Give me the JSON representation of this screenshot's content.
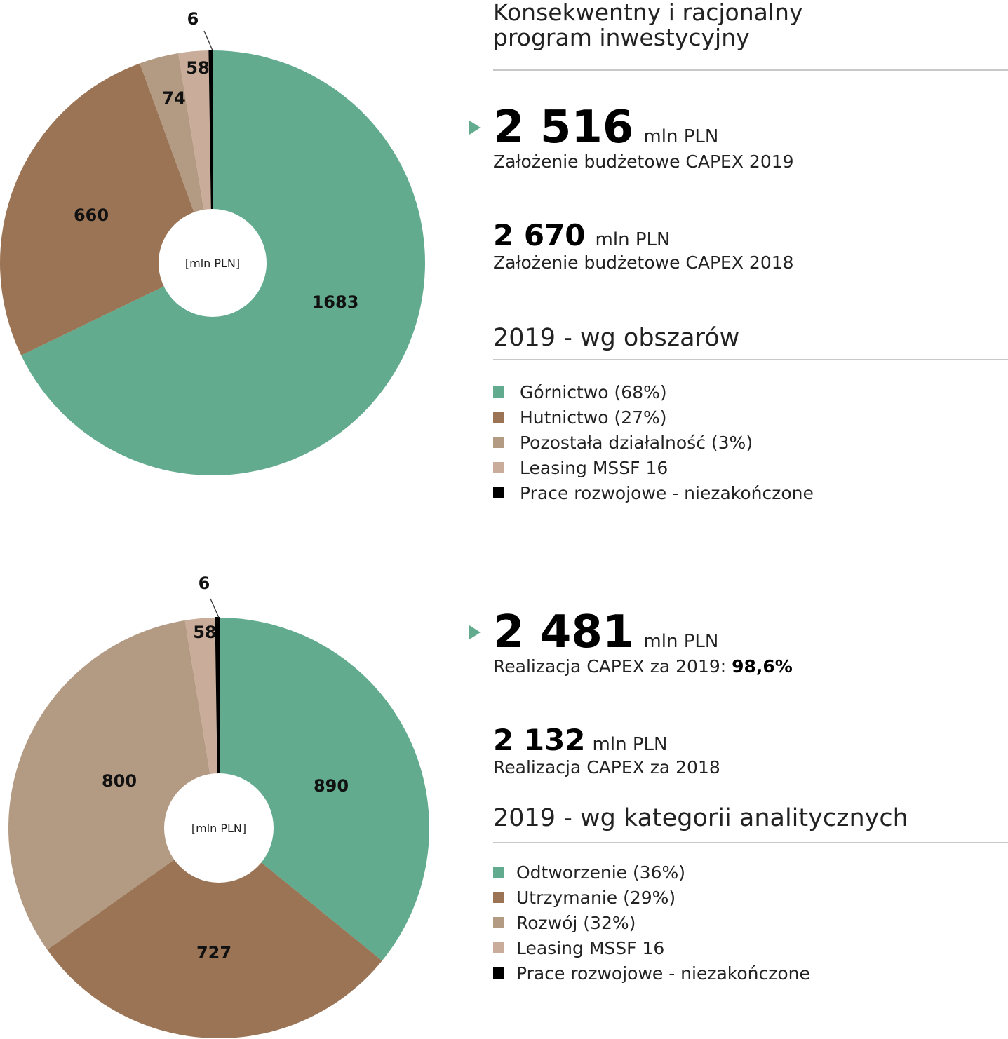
{
  "colors": {
    "gornictwo": "#62ab8f",
    "hutnictwo": "#9a7455",
    "pozostala": "#b39a83",
    "leasing": "#c9ad9a",
    "prace": "#000000",
    "accent": "#62ab8f"
  },
  "top": {
    "headline_line1": "Konsekwentny i racjonalny",
    "headline_line2": "program inwestycyjny",
    "kpi_main": {
      "value": "2 516",
      "unit": "mln PLN",
      "caption": "Założenie budżetowe CAPEX 2019"
    },
    "kpi_secondary": {
      "value": "2 670",
      "unit": "mln PLN",
      "caption": "Założenie budżetowe CAPEX 2018"
    },
    "section_title": "2019 - wg obszarów",
    "legend": [
      {
        "label": "Górnictwo (68%)",
        "color": "#62ab8f"
      },
      {
        "label": "Hutnictwo (27%)",
        "color": "#9a7455"
      },
      {
        "label": "Pozostała działalność (3%)",
        "color": "#b39a83"
      },
      {
        "label": "Leasing MSSF 16",
        "color": "#c9ad9a"
      },
      {
        "label": "Prace rozwojowe - niezakończone",
        "color": "#000000"
      }
    ]
  },
  "bottom": {
    "kpi_main": {
      "value": "2 481",
      "unit": "mln PLN",
      "caption_prefix": "Realizacja CAPEX za 2019: ",
      "caption_bold": "98,6%"
    },
    "kpi_secondary": {
      "value": "2 132",
      "unit": "mln PLN",
      "caption": "Realizacja CAPEX za 2018"
    },
    "section_title": "2019 - wg kategorii analitycznych",
    "legend": [
      {
        "label": "Odtworzenie (36%)",
        "color": "#62ab8f"
      },
      {
        "label": "Utrzymanie (29%)",
        "color": "#9a7455"
      },
      {
        "label": "Rozwój (32%)",
        "color": "#b39a83"
      },
      {
        "label": "Leasing MSSF 16",
        "color": "#c9ad9a"
      },
      {
        "label": "Prace rozwojowe - niezakończone",
        "color": "#000000"
      }
    ]
  },
  "chart_data": [
    {
      "type": "pie",
      "donut": true,
      "center_label": "[mln PLN]",
      "categories": [
        "Górnictwo",
        "Hutnictwo",
        "Pozostała działalność",
        "Leasing MSSF 16",
        "Prace rozwojowe - niezakończone"
      ],
      "values": [
        1683,
        660,
        74,
        58,
        6
      ],
      "data_labels": [
        "1683",
        "660",
        "74",
        "58",
        "6"
      ],
      "colors": [
        "#62ab8f",
        "#9a7455",
        "#b39a83",
        "#c9ad9a",
        "#000000"
      ]
    },
    {
      "type": "pie",
      "donut": true,
      "center_label": "[mln PLN]",
      "categories": [
        "Odtworzenie",
        "Utrzymanie",
        "Rozwój",
        "Leasing MSSF 16",
        "Prace rozwojowe - niezakończone"
      ],
      "values": [
        890,
        727,
        800,
        58,
        6
      ],
      "data_labels": [
        "890",
        "727",
        "800",
        "58",
        "6"
      ],
      "colors": [
        "#62ab8f",
        "#9a7455",
        "#b39a83",
        "#c9ad9a",
        "#000000"
      ]
    }
  ]
}
